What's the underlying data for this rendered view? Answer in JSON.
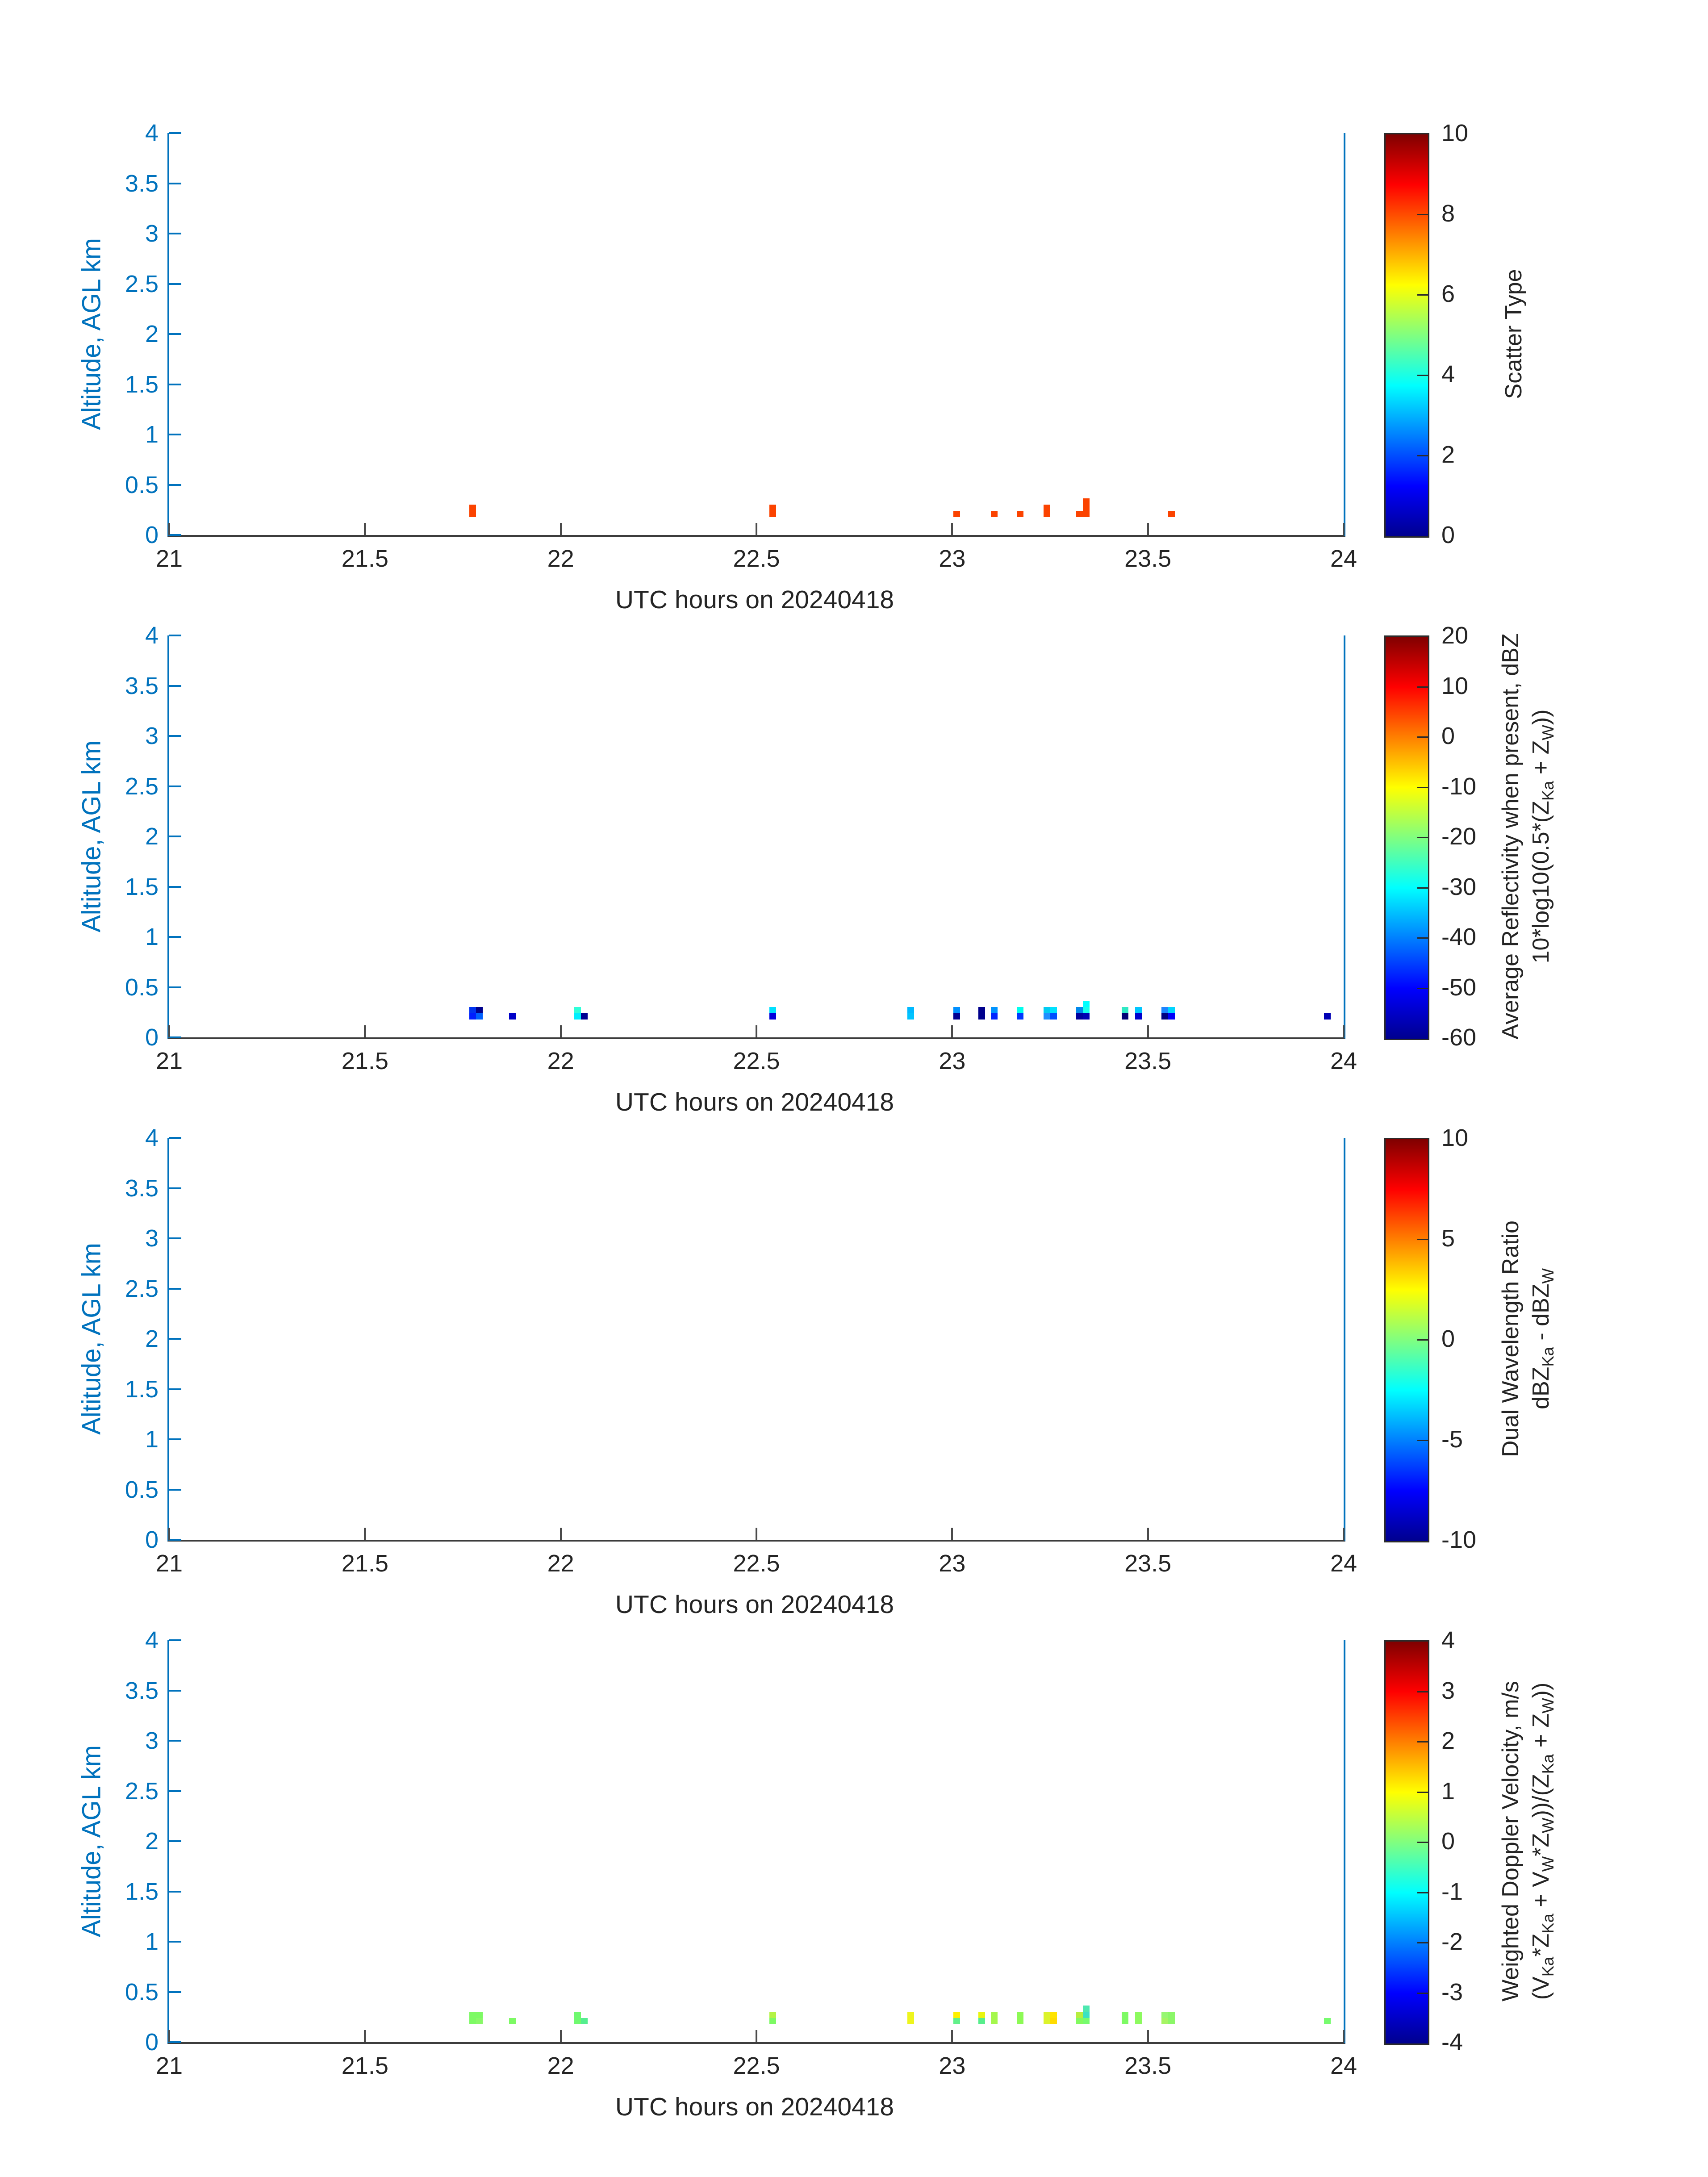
{
  "page": {
    "background": "#FFFFFF"
  },
  "style": {
    "y_axis_color": "#0072BD",
    "x_axis_color": "#3C3C3C",
    "text_color": "#242424",
    "colormap": "jet"
  },
  "chart_data": [
    {
      "type": "heatmap",
      "title": "",
      "xlabel": "UTC hours on 20240418",
      "ylabel": "Altitude, AGL km",
      "xlim": [
        21,
        24
      ],
      "ylim": [
        0,
        4
      ],
      "xticks": [
        21,
        21.5,
        22,
        22.5,
        23,
        23.5,
        24
      ],
      "xtick_labels": [
        "21",
        "21.5",
        "22",
        "22.5",
        "23",
        "23.5",
        "24"
      ],
      "yticks": [
        0,
        0.5,
        1,
        1.5,
        2,
        2.5,
        3,
        3.5,
        4
      ],
      "ytick_labels": [
        "0",
        "0.5",
        "1",
        "1.5",
        "2",
        "2.5",
        "3",
        "3.5",
        "4"
      ],
      "grid": false,
      "colorbar": {
        "position": "right",
        "label_lines": [
          [
            {
              "t": "Scatter Type"
            }
          ]
        ],
        "range": [
          0,
          10
        ],
        "ticks": [
          0,
          2,
          4,
          6,
          8,
          10
        ],
        "colormap": "jet"
      },
      "gate": {
        "bottom_km": 0.178,
        "cell_h_km": 0.0622,
        "cell_w_hr": 0.017
      },
      "cell_color": "#FB4300",
      "cells": [
        {
          "t": 21.766,
          "row": 0
        },
        {
          "t": 21.766,
          "row": 1
        },
        {
          "t": 22.533,
          "row": 0
        },
        {
          "t": 22.533,
          "row": 1
        },
        {
          "t": 23.003,
          "row": 0
        },
        {
          "t": 23.099,
          "row": 0
        },
        {
          "t": 23.165,
          "row": 0
        },
        {
          "t": 23.234,
          "row": 0
        },
        {
          "t": 23.234,
          "row": 1
        },
        {
          "t": 23.317,
          "row": 0
        },
        {
          "t": 23.334,
          "row": 0
        },
        {
          "t": 23.334,
          "row": 1
        },
        {
          "t": 23.334,
          "row": 2
        },
        {
          "t": 23.552,
          "row": 0
        }
      ]
    },
    {
      "type": "heatmap",
      "title": "",
      "xlabel": "UTC hours on 20240418",
      "ylabel": "Altitude, AGL km",
      "xlim": [
        21,
        24
      ],
      "ylim": [
        0,
        4
      ],
      "xticks": [
        21,
        21.5,
        22,
        22.5,
        23,
        23.5,
        24
      ],
      "xtick_labels": [
        "21",
        "21.5",
        "22",
        "22.5",
        "23",
        "23.5",
        "24"
      ],
      "yticks": [
        0,
        0.5,
        1,
        1.5,
        2,
        2.5,
        3,
        3.5,
        4
      ],
      "ytick_labels": [
        "0",
        "0.5",
        "1",
        "1.5",
        "2",
        "2.5",
        "3",
        "3.5",
        "4"
      ],
      "grid": false,
      "colorbar": {
        "position": "right",
        "label_lines": [
          [
            {
              "t": "Average Reflectivity when present, dBZ"
            }
          ],
          [
            {
              "t": "10*log10(0.5*(Z"
            },
            {
              "s": "Ka"
            },
            {
              "t": " + Z"
            },
            {
              "s": "W"
            },
            {
              "t": "))"
            }
          ]
        ],
        "range": [
          -60,
          20
        ],
        "ticks": [
          -60,
          -50,
          -40,
          -30,
          -20,
          -10,
          0,
          10,
          20
        ],
        "colormap": "jet"
      },
      "gate": {
        "bottom_km": 0.178,
        "cell_h_km": 0.0622,
        "cell_w_hr": 0.017
      },
      "cell_color": "#0000A0",
      "cells": [
        {
          "t": 21.766,
          "row": 1,
          "c": "#0033F0"
        },
        {
          "t": 21.766,
          "row": 0,
          "c": "#001EFF"
        },
        {
          "t": 21.784,
          "row": 1,
          "c": "#00008C"
        },
        {
          "t": 21.784,
          "row": 0,
          "c": "#0061FF"
        },
        {
          "t": 21.868,
          "row": 0,
          "c": "#0000C8"
        },
        {
          "t": 22.035,
          "row": 1,
          "c": "#2FFFD9"
        },
        {
          "t": 22.035,
          "row": 0,
          "c": "#00EFFF"
        },
        {
          "t": 22.052,
          "row": 0,
          "c": "#000092"
        },
        {
          "t": 22.533,
          "row": 1,
          "c": "#00E1FF"
        },
        {
          "t": 22.533,
          "row": 0,
          "c": "#0000DC"
        },
        {
          "t": 22.885,
          "row": 1,
          "c": "#00B9FF"
        },
        {
          "t": 22.885,
          "row": 0,
          "c": "#00C4FF"
        },
        {
          "t": 23.003,
          "row": 1,
          "c": "#0090FF"
        },
        {
          "t": 23.003,
          "row": 0,
          "c": "#000092"
        },
        {
          "t": 23.067,
          "row": 1,
          "c": "#00008C"
        },
        {
          "t": 23.067,
          "row": 0,
          "c": "#00008C"
        },
        {
          "t": 23.099,
          "row": 1,
          "c": "#0094FF"
        },
        {
          "t": 23.099,
          "row": 0,
          "c": "#0026FF"
        },
        {
          "t": 23.165,
          "row": 1,
          "c": "#00FFEE"
        },
        {
          "t": 23.165,
          "row": 0,
          "c": "#0039FF"
        },
        {
          "t": 23.234,
          "row": 1,
          "c": "#00CCF2"
        },
        {
          "t": 23.234,
          "row": 0,
          "c": "#1E8FFF"
        },
        {
          "t": 23.251,
          "row": 1,
          "c": "#00E2FF"
        },
        {
          "t": 23.251,
          "row": 0,
          "c": "#0050FF"
        },
        {
          "t": 23.317,
          "row": 1,
          "c": "#0089EC"
        },
        {
          "t": 23.317,
          "row": 0,
          "c": "#00009E"
        },
        {
          "t": 23.334,
          "row": 2,
          "c": "#00FFFF"
        },
        {
          "t": 23.334,
          "row": 1,
          "c": "#16FFEC"
        },
        {
          "t": 23.334,
          "row": 0,
          "c": "#0000B4"
        },
        {
          "t": 23.433,
          "row": 1,
          "c": "#2FE9C4"
        },
        {
          "t": 23.433,
          "row": 0,
          "c": "#000073"
        },
        {
          "t": 23.467,
          "row": 1,
          "c": "#00C6FF"
        },
        {
          "t": 23.467,
          "row": 0,
          "c": "#0000CD"
        },
        {
          "t": 23.535,
          "row": 1,
          "c": "#1E85FF"
        },
        {
          "t": 23.535,
          "row": 0,
          "c": "#000080"
        },
        {
          "t": 23.552,
          "row": 1,
          "c": "#00D5FF"
        },
        {
          "t": 23.552,
          "row": 0,
          "c": "#0000FA"
        },
        {
          "t": 23.95,
          "row": 0,
          "c": "#0000B4"
        }
      ]
    },
    {
      "type": "heatmap",
      "title": "",
      "xlabel": "UTC hours on 20240418",
      "ylabel": "Altitude, AGL km",
      "xlim": [
        21,
        24
      ],
      "ylim": [
        0,
        4
      ],
      "xticks": [
        21,
        21.5,
        22,
        22.5,
        23,
        23.5,
        24
      ],
      "xtick_labels": [
        "21",
        "21.5",
        "22",
        "22.5",
        "23",
        "23.5",
        "24"
      ],
      "yticks": [
        0,
        0.5,
        1,
        1.5,
        2,
        2.5,
        3,
        3.5,
        4
      ],
      "ytick_labels": [
        "0",
        "0.5",
        "1",
        "1.5",
        "2",
        "2.5",
        "3",
        "3.5",
        "4"
      ],
      "grid": false,
      "colorbar": {
        "position": "right",
        "label_lines": [
          [
            {
              "t": "Dual Wavelength Ratio"
            }
          ],
          [
            {
              "t": "dBZ"
            },
            {
              "s": "Ka"
            },
            {
              "t": " - dBZ"
            },
            {
              "s": "W"
            }
          ]
        ],
        "range": [
          -10,
          10
        ],
        "ticks": [
          -10,
          -5,
          0,
          5,
          10
        ],
        "colormap": "jet"
      },
      "gate": {
        "bottom_km": 0.178,
        "cell_h_km": 0.0622,
        "cell_w_hr": 0.017
      },
      "cell_color": "#000080",
      "cells": []
    },
    {
      "type": "heatmap",
      "title": "",
      "xlabel": "UTC hours on 20240418",
      "ylabel": "Altitude, AGL km",
      "xlim": [
        21,
        24
      ],
      "ylim": [
        0,
        4
      ],
      "xticks": [
        21,
        21.5,
        22,
        22.5,
        23,
        23.5,
        24
      ],
      "xtick_labels": [
        "21",
        "21.5",
        "22",
        "22.5",
        "23",
        "23.5",
        "24"
      ],
      "yticks": [
        0,
        0.5,
        1,
        1.5,
        2,
        2.5,
        3,
        3.5,
        4
      ],
      "ytick_labels": [
        "0",
        "0.5",
        "1",
        "1.5",
        "2",
        "2.5",
        "3",
        "3.5",
        "4"
      ],
      "grid": false,
      "colorbar": {
        "position": "right",
        "label_lines": [
          [
            {
              "t": "Weighted Doppler Velocity, m/s"
            }
          ],
          [
            {
              "t": "(V"
            },
            {
              "s": "Ka"
            },
            {
              "t": "*Z"
            },
            {
              "s": "Ka"
            },
            {
              "t": " + V"
            },
            {
              "s": "W"
            },
            {
              "t": "*Z"
            },
            {
              "s": "W"
            },
            {
              "t": "))/(Z"
            },
            {
              "s": "Ka"
            },
            {
              "t": " + Z"
            },
            {
              "s": "W"
            },
            {
              "t": "))"
            }
          ]
        ],
        "range": [
          -4,
          4
        ],
        "ticks": [
          -4,
          -3,
          -2,
          -1,
          0,
          1,
          2,
          3,
          4
        ],
        "colormap": "jet"
      },
      "gate": {
        "bottom_km": 0.178,
        "cell_h_km": 0.0622,
        "cell_w_hr": 0.017
      },
      "cell_color": "#7DFA64",
      "cells": [
        {
          "t": 21.766,
          "row": 1,
          "c": "#7DFA64"
        },
        {
          "t": 21.766,
          "row": 0,
          "c": "#7DFA64"
        },
        {
          "t": 21.784,
          "row": 1,
          "c": "#7DFA64"
        },
        {
          "t": 21.784,
          "row": 0,
          "c": "#89F868"
        },
        {
          "t": 21.868,
          "row": 0,
          "c": "#7DFA64"
        },
        {
          "t": 22.035,
          "row": 1,
          "c": "#6FF96F"
        },
        {
          "t": 22.035,
          "row": 0,
          "c": "#6FF96F"
        },
        {
          "t": 22.052,
          "row": 0,
          "c": "#55EE8E"
        },
        {
          "t": 22.533,
          "row": 1,
          "c": "#B4F345"
        },
        {
          "t": 22.533,
          "row": 0,
          "c": "#7DFA64"
        },
        {
          "t": 22.885,
          "row": 1,
          "c": "#EEF51D"
        },
        {
          "t": 22.885,
          "row": 0,
          "c": "#EEF51D"
        },
        {
          "t": 23.003,
          "row": 1,
          "c": "#FEF000"
        },
        {
          "t": 23.003,
          "row": 0,
          "c": "#62F08A"
        },
        {
          "t": 23.067,
          "row": 1,
          "c": "#E8F50F"
        },
        {
          "t": 23.067,
          "row": 0,
          "c": "#57EE8C"
        },
        {
          "t": 23.099,
          "row": 1,
          "c": "#A5F74D"
        },
        {
          "t": 23.099,
          "row": 0,
          "c": "#A5F74D"
        },
        {
          "t": 23.165,
          "row": 1,
          "c": "#8DFA55"
        },
        {
          "t": 23.165,
          "row": 0,
          "c": "#8DFA55"
        },
        {
          "t": 23.234,
          "row": 1,
          "c": "#DCF32B"
        },
        {
          "t": 23.234,
          "row": 0,
          "c": "#DCF32B"
        },
        {
          "t": 23.251,
          "row": 1,
          "c": "#FFE400"
        },
        {
          "t": 23.251,
          "row": 0,
          "c": "#FFDC00"
        },
        {
          "t": 23.317,
          "row": 1,
          "c": "#B7EE3F"
        },
        {
          "t": 23.317,
          "row": 0,
          "c": "#82FA60"
        },
        {
          "t": 23.334,
          "row": 2,
          "c": "#4DE8B0"
        },
        {
          "t": 23.334,
          "row": 1,
          "c": "#3AE2C3"
        },
        {
          "t": 23.334,
          "row": 0,
          "c": "#77FB6E"
        },
        {
          "t": 23.433,
          "row": 1,
          "c": "#7DFA64"
        },
        {
          "t": 23.433,
          "row": 0,
          "c": "#7DFA64"
        },
        {
          "t": 23.467,
          "row": 1,
          "c": "#8DFA5F"
        },
        {
          "t": 23.467,
          "row": 0,
          "c": "#8DFA5F"
        },
        {
          "t": 23.535,
          "row": 1,
          "c": "#97F772"
        },
        {
          "t": 23.535,
          "row": 0,
          "c": "#A6F464"
        },
        {
          "t": 23.552,
          "row": 1,
          "c": "#8BF768"
        },
        {
          "t": 23.552,
          "row": 0,
          "c": "#8BF768"
        },
        {
          "t": 23.95,
          "row": 0,
          "c": "#77FB6E"
        }
      ]
    }
  ]
}
